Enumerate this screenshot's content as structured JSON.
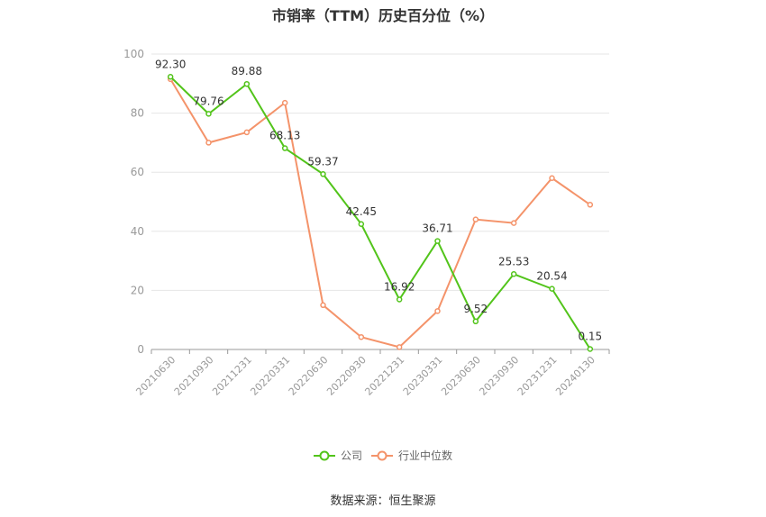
{
  "chart_data": {
    "type": "line",
    "title": "市销率（TTM）历史百分位（%）",
    "categories": [
      "20210630",
      "20210930",
      "20211231",
      "20220331",
      "20220630",
      "20220930",
      "20221231",
      "20230331",
      "20230630",
      "20230930",
      "20231231",
      "20240130"
    ],
    "ylim": [
      0,
      100
    ],
    "yticks": [
      0,
      20,
      40,
      60,
      80,
      100
    ],
    "grid": true,
    "legend_position": "bottom",
    "series": [
      {
        "name": "公司",
        "color": "#52c41a",
        "values": [
          92.3,
          79.76,
          89.88,
          68.13,
          59.37,
          42.45,
          16.92,
          36.71,
          9.52,
          25.53,
          20.54,
          0.15
        ],
        "labels": [
          "92.30",
          "79.76",
          "89.88",
          "68.13",
          "59.37",
          "42.45",
          "16.92",
          "36.71",
          "9.52",
          "25.53",
          "20.54",
          "0.15"
        ]
      },
      {
        "name": "行业中位数",
        "color": "#f4936a",
        "values": [
          91.5,
          70.0,
          73.5,
          83.5,
          15.0,
          4.2,
          0.8,
          13.0,
          44.0,
          42.8,
          58.0,
          49.0
        ]
      }
    ]
  },
  "source": "数据来源：恒生聚源"
}
